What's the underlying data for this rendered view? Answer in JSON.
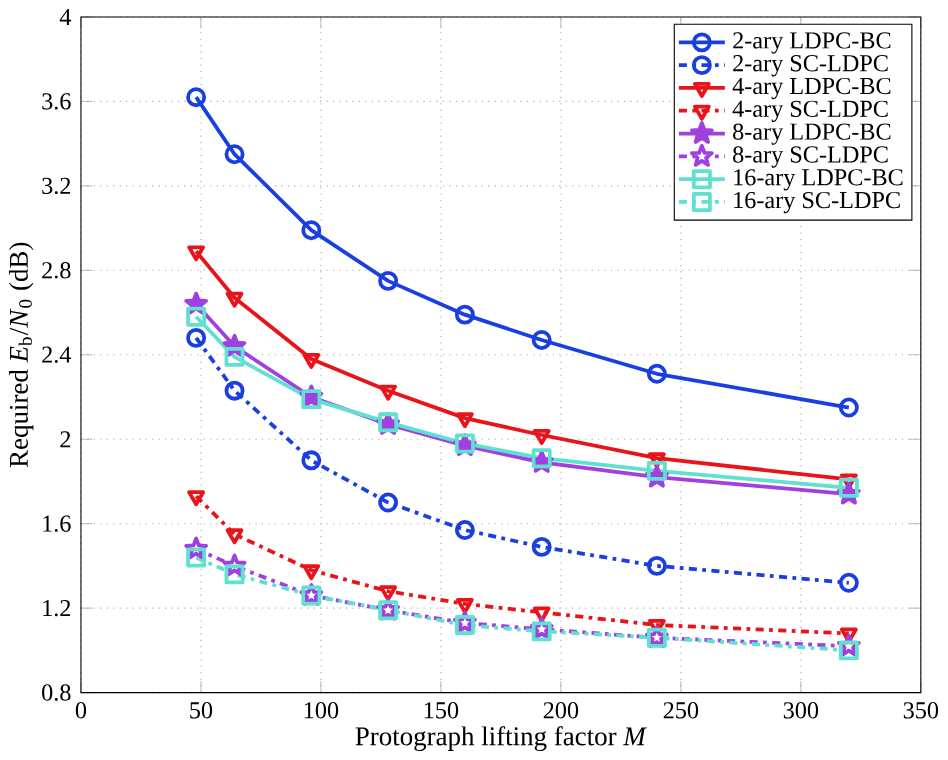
{
  "chart_data": {
    "type": "line",
    "xlabel": "Protograph lifting factor *M*",
    "ylabel": "Required *E*$_{b}$/*N*$_{0}$ (dB)",
    "xlim": [
      0,
      350
    ],
    "xticks": [
      0,
      50,
      100,
      150,
      200,
      250,
      300,
      350
    ],
    "ylim": [
      0.8,
      4
    ],
    "yticks": [
      0.8,
      1.2,
      1.6,
      2,
      2.4,
      2.8,
      3.2,
      3.6,
      4
    ],
    "grid": true,
    "legend": "top right",
    "x": [
      48,
      64,
      96,
      128,
      160,
      192,
      240,
      320
    ],
    "series": [
      {
        "name": "2-ary LDPC-BC",
        "color": "#1a3fe0",
        "marker": "circle",
        "line_style": "solid",
        "values": [
          3.62,
          3.35,
          2.99,
          2.75,
          2.59,
          2.47,
          2.31,
          2.15
        ]
      },
      {
        "name": "2-ary SC-LDPC",
        "color": "#1a3fe0",
        "marker": "circle",
        "line_style": "dashdot",
        "values": [
          2.48,
          2.23,
          1.9,
          1.7,
          1.57,
          1.49,
          1.4,
          1.32
        ]
      },
      {
        "name": "4-ary LDPC-BC",
        "color": "#e8141a",
        "marker": "triangle",
        "line_style": "solid",
        "values": [
          2.89,
          2.67,
          2.38,
          2.23,
          2.1,
          2.02,
          1.91,
          1.81
        ]
      },
      {
        "name": "4-ary SC-LDPC",
        "color": "#e8141a",
        "marker": "triangle",
        "line_style": "dashdot",
        "values": [
          1.73,
          1.55,
          1.38,
          1.28,
          1.22,
          1.18,
          1.12,
          1.08
        ]
      },
      {
        "name": "8-ary LDPC-BC",
        "color": "#a040e0",
        "marker": "star",
        "line_style": "solid",
        "values": [
          2.64,
          2.44,
          2.2,
          2.07,
          1.97,
          1.89,
          1.82,
          1.74
        ]
      },
      {
        "name": "8-ary SC-LDPC",
        "color": "#a040e0",
        "marker": "star",
        "line_style": "dashdot",
        "values": [
          1.48,
          1.4,
          1.26,
          1.19,
          1.13,
          1.1,
          1.06,
          1.02
        ]
      },
      {
        "name": "16-ary LDPC-BC",
        "color": "#60e0d0",
        "marker": "square",
        "line_style": "solid",
        "values": [
          2.58,
          2.39,
          2.19,
          2.08,
          1.98,
          1.91,
          1.85,
          1.77
        ]
      },
      {
        "name": "16-ary SC-LDPC",
        "color": "#60e0d0",
        "marker": "square",
        "line_style": "dashdot",
        "values": [
          1.44,
          1.36,
          1.26,
          1.19,
          1.12,
          1.09,
          1.06,
          1.0
        ]
      }
    ]
  }
}
